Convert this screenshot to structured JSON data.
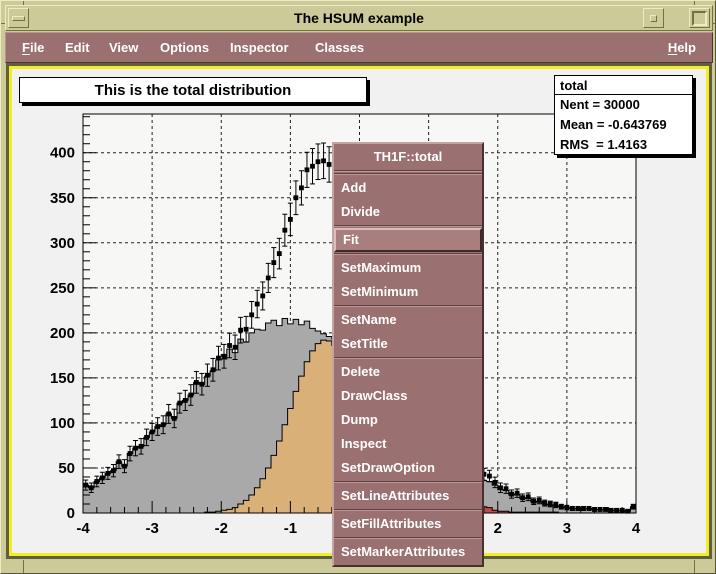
{
  "window": {
    "title": "The HSUM example"
  },
  "menubar": {
    "items": [
      {
        "label": "File",
        "mnemonic": true
      },
      {
        "label": "Edit",
        "mnemonic": false
      },
      {
        "label": "View",
        "mnemonic": false
      },
      {
        "label": "Options",
        "mnemonic": false
      },
      {
        "label": "Inspector",
        "mnemonic": false
      },
      {
        "label": "Classes",
        "mnemonic": false
      }
    ],
    "help": {
      "label": "Help",
      "mnemonic": true
    }
  },
  "canvas": {
    "plot_title": "This is the total distribution",
    "stats": {
      "title": "total",
      "lines": [
        "Nent = 30000",
        "Mean = -0.643769",
        "RMS  = 1.4163"
      ]
    }
  },
  "context_menu": {
    "title": "TH1F::total",
    "entries": [
      {
        "label": "Add"
      },
      {
        "label": "Divide"
      },
      {
        "separator": true
      },
      {
        "label": "Fit",
        "highlighted": true
      },
      {
        "separator": true
      },
      {
        "label": "SetMaximum"
      },
      {
        "label": "SetMinimum"
      },
      {
        "separator": true
      },
      {
        "label": "SetName"
      },
      {
        "label": "SetTitle"
      },
      {
        "separator": true
      },
      {
        "label": "Delete"
      },
      {
        "label": "DrawClass"
      },
      {
        "label": "Dump"
      },
      {
        "label": "Inspect"
      },
      {
        "label": "SetDrawOption"
      },
      {
        "separator": true
      },
      {
        "label": "SetLineAttributes"
      },
      {
        "separator": true
      },
      {
        "label": "SetFillAttributes"
      },
      {
        "separator": true
      },
      {
        "label": "SetMarkerAttributes"
      }
    ]
  },
  "colors": {
    "frame_tan": "#cdca99",
    "menu_mauve": "#9b7070",
    "canvas_bg": "#f1f1f1",
    "selection_yellow": "#f2ee22",
    "hist_gray": "#a9a9a9",
    "hist_tan": "#d9b178",
    "hist_red": "#bf4a4a"
  },
  "chart_data": {
    "type": "histogram",
    "title": "This is the total distribution",
    "bins": 100,
    "x_range": [
      -4,
      4
    ],
    "y_range": [
      0,
      443
    ],
    "grid": true,
    "x_ticks": [
      -4,
      -3,
      -2,
      -1,
      0,
      1,
      2,
      3,
      4
    ],
    "y_ticks": [
      0,
      50,
      100,
      150,
      200,
      250,
      300,
      350,
      400
    ],
    "x_minor_step": 0.2,
    "y_minor_step": 10,
    "stats": {
      "name": "total",
      "entries": 30000,
      "mean": -0.643769,
      "rms": 1.4163
    },
    "series": [
      {
        "name": "main",
        "style": "filled",
        "color": "#a9a9a9",
        "values": [
          31,
          28,
          35,
          39,
          44,
          47,
          57,
          52,
          66,
          72,
          74,
          84,
          90,
          96,
          98,
          110,
          105,
          122,
          125,
          131,
          145,
          143,
          152,
          158,
          170,
          171,
          182,
          178,
          193,
          190,
          200,
          204,
          203,
          211,
          214,
          208,
          216,
          210,
          215,
          209,
          213,
          205,
          202,
          199,
          196,
          193,
          186,
          188,
          176,
          171,
          168,
          158,
          157,
          146,
          139,
          137,
          124,
          118,
          115,
          104,
          98,
          95,
          85,
          83,
          77,
          67,
          66,
          57,
          55,
          50,
          47,
          40,
          36,
          35,
          31,
          26,
          25,
          20,
          21,
          16,
          17,
          12,
          13,
          10,
          9,
          8,
          7,
          6,
          5,
          5,
          5,
          5,
          4,
          4,
          4,
          3,
          3,
          3,
          2,
          7
        ]
      },
      {
        "name": "s1",
        "style": "filled",
        "color": "#d9b178",
        "values": [
          0,
          0,
          0,
          0,
          0,
          0,
          0,
          0,
          0,
          0,
          0,
          0,
          0,
          0,
          0,
          0,
          0,
          0,
          0,
          0,
          0,
          0,
          1,
          1,
          2,
          3,
          4,
          6,
          10,
          14,
          20,
          28,
          38,
          50,
          64,
          80,
          98,
          116,
          135,
          152,
          168,
          180,
          188,
          192,
          191,
          186,
          177,
          164,
          148,
          130,
          107,
          89,
          72,
          57,
          44,
          33,
          24,
          17,
          12,
          8,
          5,
          3,
          2,
          1,
          1,
          0,
          0,
          0,
          0,
          0,
          0,
          0,
          0,
          0,
          0,
          0,
          0,
          0,
          0,
          0,
          0,
          0,
          0,
          0,
          0,
          0,
          0,
          0,
          0,
          0,
          0,
          0,
          0,
          0,
          0,
          0,
          0,
          0,
          0,
          0
        ]
      },
      {
        "name": "s2",
        "style": "filled",
        "color": "#bf4a4a",
        "values": [
          0,
          0,
          0,
          0,
          0,
          0,
          0,
          0,
          0,
          0,
          0,
          0,
          0,
          0,
          0,
          0,
          0,
          0,
          0,
          0,
          0,
          0,
          0,
          0,
          0,
          0,
          0,
          0,
          0,
          0,
          0,
          0,
          0,
          0,
          0,
          0,
          0,
          0,
          0,
          0,
          0,
          0,
          0,
          0,
          0,
          0,
          0,
          0,
          0,
          0,
          0,
          0,
          0,
          0,
          0,
          0,
          0,
          0,
          1,
          4,
          30,
          110,
          185,
          160,
          100,
          60,
          38,
          26,
          19,
          14,
          11,
          9,
          7,
          6,
          3,
          2,
          2,
          1,
          1,
          1,
          1,
          1,
          1,
          1,
          1,
          1,
          0,
          0,
          0,
          0,
          0,
          0,
          0,
          0,
          0,
          0,
          0,
          0,
          0,
          0
        ]
      },
      {
        "name": "total",
        "style": "points_errors",
        "color": "#000000",
        "values": [
          31,
          28,
          35,
          39,
          44,
          47,
          57,
          52,
          66,
          72,
          74,
          84,
          90,
          96,
          98,
          110,
          105,
          122,
          125,
          131,
          145,
          143,
          153,
          159,
          172,
          174,
          186,
          184,
          203,
          204,
          220,
          232,
          241,
          261,
          278,
          288,
          314,
          326,
          350,
          361,
          381,
          385,
          390,
          391,
          387,
          379,
          363,
          352,
          324,
          301,
          275,
          247,
          229,
          203,
          183,
          170,
          148,
          135,
          128,
          116,
          133,
          208,
          272,
          244,
          178,
          127,
          104,
          83,
          74,
          64,
          58,
          49,
          43,
          41,
          34,
          28,
          27,
          21,
          22,
          17,
          18,
          13,
          14,
          11,
          10,
          9,
          7,
          6,
          5,
          5,
          5,
          5,
          4,
          4,
          4,
          3,
          3,
          3,
          2,
          7
        ]
      }
    ]
  }
}
